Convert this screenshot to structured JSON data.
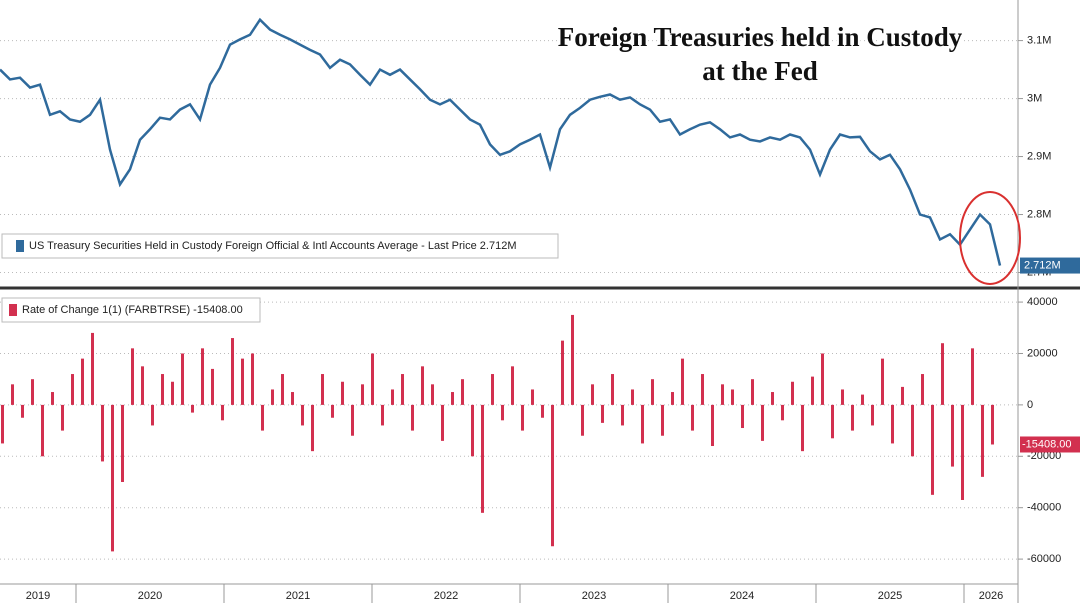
{
  "chart_data": [
    {
      "type": "line",
      "title_lines": [
        "Foreign Treasuries held in Custody",
        "at the Fed"
      ],
      "series": [
        {
          "name": "US Treasury Securities Held in Custody Foreign Official & Intl Accounts Average - Last Price 2.712M",
          "color": "#2f6a9c",
          "values": [
            3.05,
            3.033,
            3.036,
            3.019,
            3.024,
            2.972,
            2.978,
            2.964,
            2.96,
            2.972,
            2.998,
            2.912,
            2.852,
            2.878,
            2.929,
            2.947,
            2.967,
            2.964,
            2.981,
            2.99,
            2.964,
            3.024,
            3.053,
            3.093,
            3.102,
            3.11,
            3.136,
            3.119,
            3.11,
            3.102,
            3.093,
            3.084,
            3.076,
            3.053,
            3.067,
            3.059,
            3.041,
            3.024,
            3.05,
            3.041,
            3.05,
            3.033,
            3.016,
            2.998,
            2.99,
            2.998,
            2.981,
            2.964,
            2.955,
            2.921,
            2.903,
            2.909,
            2.921,
            2.929,
            2.938,
            2.881,
            2.947,
            2.972,
            2.984,
            2.998,
            3.003,
            3.007,
            2.998,
            3.002,
            2.99,
            2.981,
            2.96,
            2.964,
            2.938,
            2.947,
            2.955,
            2.959,
            2.947,
            2.933,
            2.938,
            2.929,
            2.926,
            2.933,
            2.929,
            2.938,
            2.933,
            2.912,
            2.869,
            2.912,
            2.938,
            2.933,
            2.934,
            2.909,
            2.895,
            2.903,
            2.878,
            2.843,
            2.8,
            2.795,
            2.757,
            2.766,
            2.748,
            2.774,
            2.8,
            2.783,
            2.712
          ]
        }
      ],
      "last_value": 2.712,
      "last_value_label": "2.712M",
      "ylim": [
        2.675,
        3.17
      ],
      "yticks": [
        {
          "value": 2.7,
          "label": "2.7M"
        },
        {
          "value": 2.8,
          "label": "2.8M"
        },
        {
          "value": 2.9,
          "label": "2.9M"
        },
        {
          "value": 3,
          "label": "3M"
        },
        {
          "value": 3.1,
          "label": "3.1M"
        }
      ],
      "grid": true
    },
    {
      "type": "bar",
      "series": [
        {
          "name": "Rate of Change 1(1) (FARBTRSE) -15408.00",
          "color": "#d2304f",
          "values": [
            -15000,
            8000,
            -5000,
            10000,
            -20000,
            5000,
            -10000,
            12000,
            18000,
            28000,
            -22000,
            -57000,
            -30000,
            22000,
            15000,
            -8000,
            12000,
            9000,
            20000,
            -3000,
            22000,
            14000,
            -6000,
            26000,
            18000,
            20000,
            -10000,
            6000,
            12000,
            5000,
            -8000,
            -18000,
            12000,
            -5000,
            9000,
            -12000,
            8000,
            20000,
            -8000,
            6000,
            12000,
            -10000,
            15000,
            8000,
            -14000,
            5000,
            10000,
            -20000,
            -42000,
            12000,
            -6000,
            15000,
            -10000,
            6000,
            -5000,
            -55000,
            25000,
            35000,
            -12000,
            8000,
            -7000,
            12000,
            -8000,
            6000,
            -15000,
            10000,
            -12000,
            5000,
            18000,
            -10000,
            12000,
            -16000,
            8000,
            6000,
            -9000,
            10000,
            -14000,
            5000,
            -6000,
            9000,
            -18000,
            11000,
            20000,
            -13000,
            6000,
            -10000,
            4000,
            -8000,
            18000,
            -15000,
            7000,
            -20000,
            12000,
            -35000,
            24000,
            -24000,
            -37000,
            22000,
            -28000,
            -15408
          ]
        }
      ],
      "last_value_label": "-15408.00",
      "ylim": [
        -69300,
        44700
      ],
      "yticks": [
        -60000,
        -40000,
        -20000,
        0,
        20000,
        40000
      ],
      "grid": true,
      "xtick_labels": [
        "2019",
        "2020",
        "2021",
        "2022",
        "2023",
        "2024",
        "2025",
        "2026"
      ]
    }
  ]
}
